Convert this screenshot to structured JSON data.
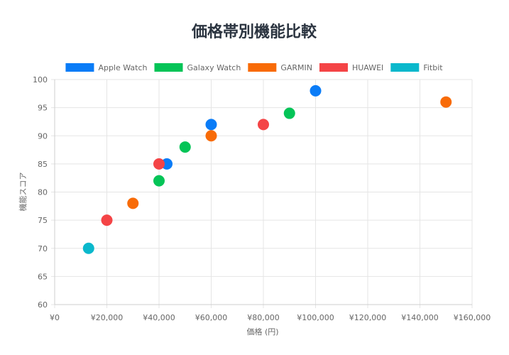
{
  "chart_data": {
    "type": "scatter",
    "title": "価格帯別機能比較",
    "xlabel": "価格 (円)",
    "ylabel": "機能スコア",
    "xlim": [
      0,
      160000
    ],
    "ylim": [
      60,
      100
    ],
    "x_ticks": [
      "¥0",
      "¥20,000",
      "¥40,000",
      "¥60,000",
      "¥80,000",
      "¥100,000",
      "¥120,000",
      "¥140,000",
      "¥160,000"
    ],
    "y_ticks": [
      "60",
      "65",
      "70",
      "75",
      "80",
      "85",
      "90",
      "95",
      "100"
    ],
    "grid": true,
    "legend_position": "top",
    "series": [
      {
        "name": "Apple Watch",
        "color": "#0a7cf7",
        "points": [
          [
            43000,
            85
          ],
          [
            60000,
            92
          ],
          [
            100000,
            98
          ]
        ]
      },
      {
        "name": "Galaxy Watch",
        "color": "#04c457",
        "points": [
          [
            40000,
            82
          ],
          [
            50000,
            88
          ],
          [
            90000,
            94
          ]
        ]
      },
      {
        "name": "GARMIN",
        "color": "#f86b07",
        "points": [
          [
            30000,
            78
          ],
          [
            60000,
            90
          ],
          [
            150000,
            96
          ]
        ]
      },
      {
        "name": "HUAWEI",
        "color": "#f44446",
        "points": [
          [
            20000,
            75
          ],
          [
            40000,
            85
          ],
          [
            80000,
            92
          ]
        ]
      },
      {
        "name": "Fitbit",
        "color": "#0ab8cc",
        "points": [
          [
            13000,
            70
          ]
        ]
      }
    ]
  }
}
